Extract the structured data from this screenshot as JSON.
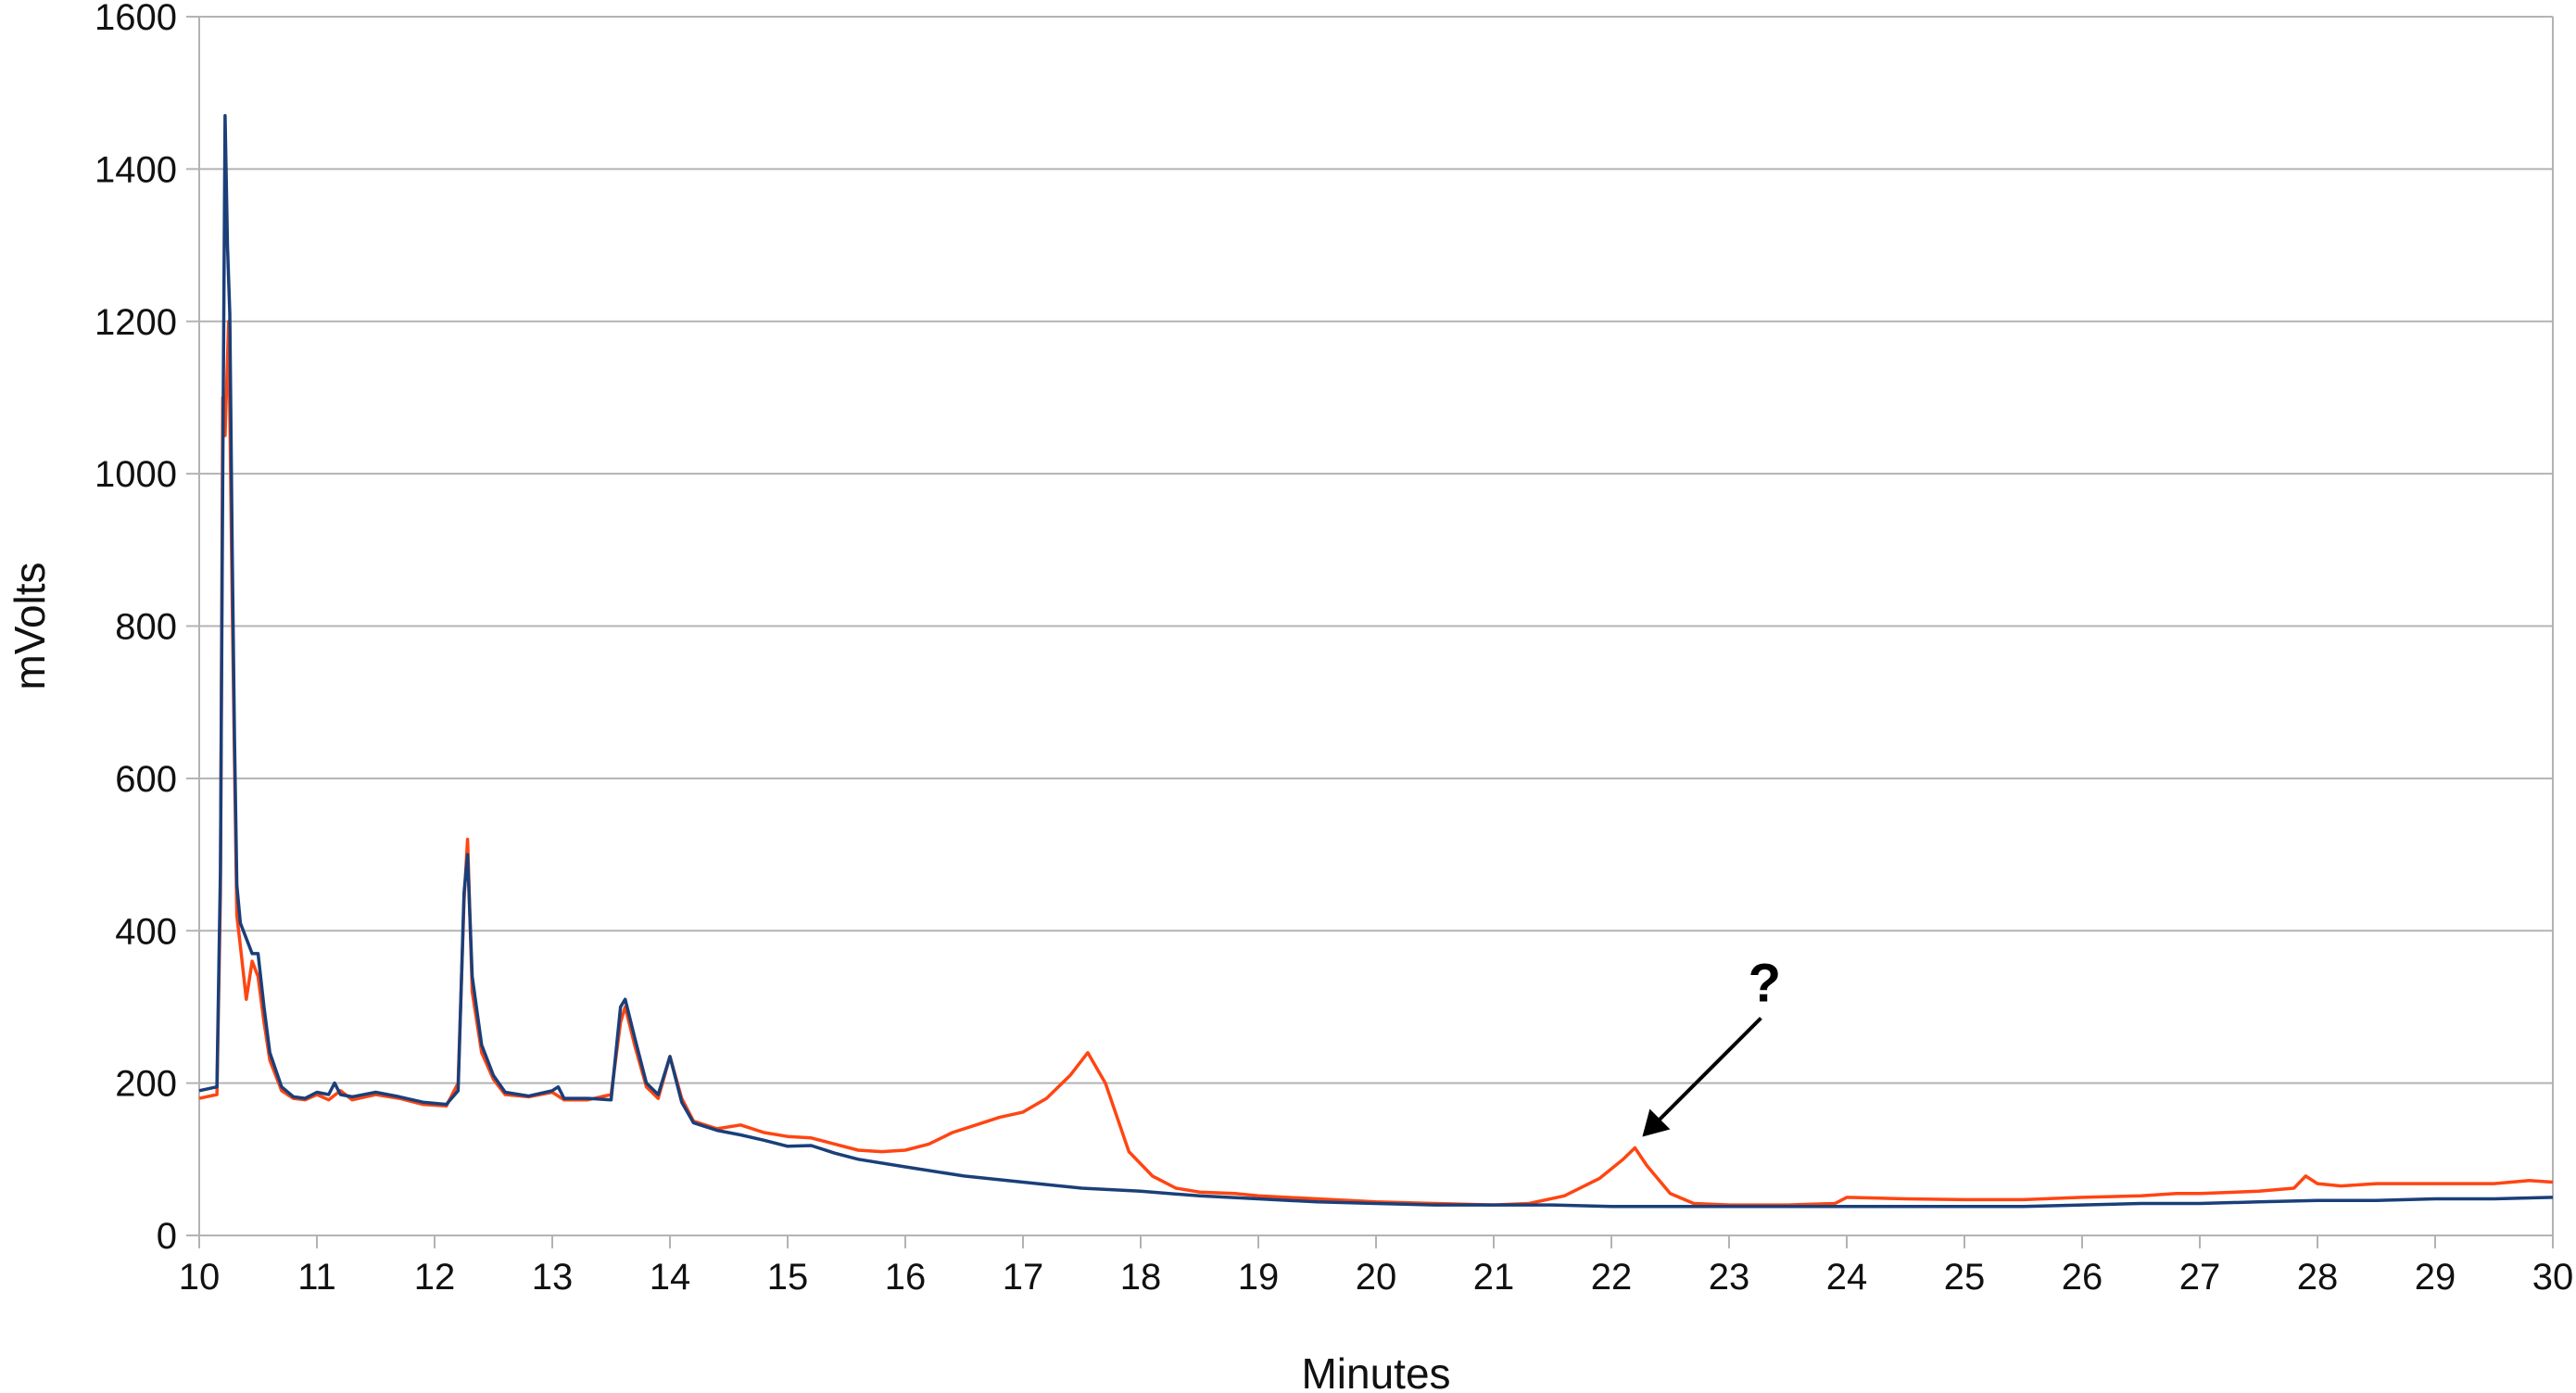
{
  "chart_data": {
    "type": "line",
    "title": "",
    "xlabel": "Minutes",
    "ylabel": "mVolts",
    "xlim": [
      10,
      30
    ],
    "ylim": [
      0,
      1600
    ],
    "x_ticks": [
      10,
      11,
      12,
      13,
      14,
      15,
      16,
      17,
      18,
      19,
      20,
      21,
      22,
      23,
      24,
      25,
      26,
      27,
      28,
      29,
      30
    ],
    "y_ticks": [
      0,
      200,
      400,
      600,
      800,
      1000,
      1200,
      1400,
      1600
    ],
    "grid": "horizontal",
    "legend": "none",
    "annotation": {
      "text": "?",
      "x": 22.2,
      "y": 115
    },
    "series": [
      {
        "color": "#ff4512",
        "x": [
          10.0,
          10.15,
          10.18,
          10.2,
          10.22,
          10.25,
          10.28,
          10.3,
          10.32,
          10.35,
          10.4,
          10.45,
          10.5,
          10.55,
          10.6,
          10.7,
          10.8,
          10.9,
          11.0,
          11.1,
          11.2,
          11.3,
          11.5,
          11.7,
          11.9,
          12.1,
          12.2,
          12.25,
          12.28,
          12.32,
          12.4,
          12.5,
          12.6,
          12.8,
          13.0,
          13.1,
          13.3,
          13.5,
          13.58,
          13.62,
          13.7,
          13.8,
          13.9,
          14.0,
          14.1,
          14.2,
          14.4,
          14.6,
          14.8,
          15.0,
          15.2,
          15.4,
          15.6,
          15.8,
          16.0,
          16.2,
          16.4,
          16.6,
          16.8,
          17.0,
          17.2,
          17.4,
          17.55,
          17.7,
          17.9,
          18.1,
          18.3,
          18.5,
          18.8,
          19.0,
          19.5,
          20.0,
          20.5,
          21.0,
          21.3,
          21.6,
          21.9,
          22.1,
          22.2,
          22.3,
          22.5,
          22.7,
          23.0,
          23.5,
          23.9,
          24.0,
          24.5,
          25.0,
          25.5,
          26.0,
          26.5,
          26.8,
          27.0,
          27.5,
          27.8,
          27.9,
          28.0,
          28.2,
          28.5,
          29.0,
          29.5,
          29.8,
          30.0
        ],
        "values": [
          180,
          185,
          450,
          1100,
          1050,
          1200,
          830,
          620,
          420,
          380,
          310,
          360,
          340,
          280,
          230,
          190,
          180,
          178,
          185,
          178,
          190,
          178,
          185,
          180,
          172,
          170,
          200,
          440,
          520,
          320,
          240,
          205,
          185,
          182,
          188,
          178,
          178,
          185,
          280,
          300,
          250,
          195,
          180,
          235,
          180,
          150,
          140,
          145,
          135,
          130,
          128,
          120,
          112,
          110,
          112,
          120,
          135,
          145,
          155,
          162,
          180,
          210,
          240,
          200,
          110,
          78,
          62,
          57,
          55,
          52,
          48,
          44,
          42,
          40,
          42,
          52,
          75,
          100,
          115,
          92,
          55,
          42,
          40,
          40,
          42,
          50,
          48,
          47,
          47,
          50,
          52,
          55,
          55,
          58,
          62,
          78,
          68,
          65,
          68,
          68,
          68,
          72,
          70
        ]
      },
      {
        "color": "#1a3f7a",
        "x": [
          10.0,
          10.15,
          10.18,
          10.2,
          10.22,
          10.24,
          10.26,
          10.28,
          10.3,
          10.32,
          10.35,
          10.4,
          10.45,
          10.5,
          10.55,
          10.6,
          10.7,
          10.8,
          10.9,
          11.0,
          11.1,
          11.15,
          11.2,
          11.3,
          11.5,
          11.7,
          11.9,
          12.1,
          12.2,
          12.25,
          12.28,
          12.32,
          12.4,
          12.5,
          12.6,
          12.8,
          13.0,
          13.05,
          13.1,
          13.3,
          13.5,
          13.58,
          13.62,
          13.7,
          13.8,
          13.9,
          14.0,
          14.1,
          14.2,
          14.4,
          14.6,
          14.8,
          15.0,
          15.2,
          15.4,
          15.6,
          16.0,
          16.5,
          17.0,
          17.5,
          18.0,
          18.5,
          19.0,
          19.5,
          20.0,
          20.5,
          21.0,
          21.5,
          22.0,
          22.5,
          23.0,
          23.5,
          24.0,
          24.5,
          25.0,
          25.5,
          26.0,
          26.5,
          27.0,
          27.5,
          28.0,
          28.5,
          29.0,
          29.5,
          30.0
        ],
        "values": [
          190,
          195,
          480,
          1000,
          1470,
          1300,
          1210,
          900,
          650,
          460,
          410,
          390,
          370,
          370,
          300,
          240,
          195,
          182,
          180,
          188,
          185,
          200,
          185,
          182,
          188,
          182,
          175,
          172,
          190,
          450,
          500,
          340,
          250,
          210,
          188,
          183,
          190,
          195,
          180,
          180,
          178,
          300,
          310,
          260,
          200,
          185,
          235,
          175,
          148,
          138,
          132,
          125,
          117,
          118,
          108,
          100,
          90,
          78,
          70,
          62,
          58,
          52,
          48,
          44,
          42,
          40,
          40,
          40,
          38,
          38,
          38,
          38,
          38,
          38,
          38,
          38,
          40,
          42,
          42,
          44,
          46,
          46,
          48,
          48,
          50
        ]
      }
    ]
  }
}
